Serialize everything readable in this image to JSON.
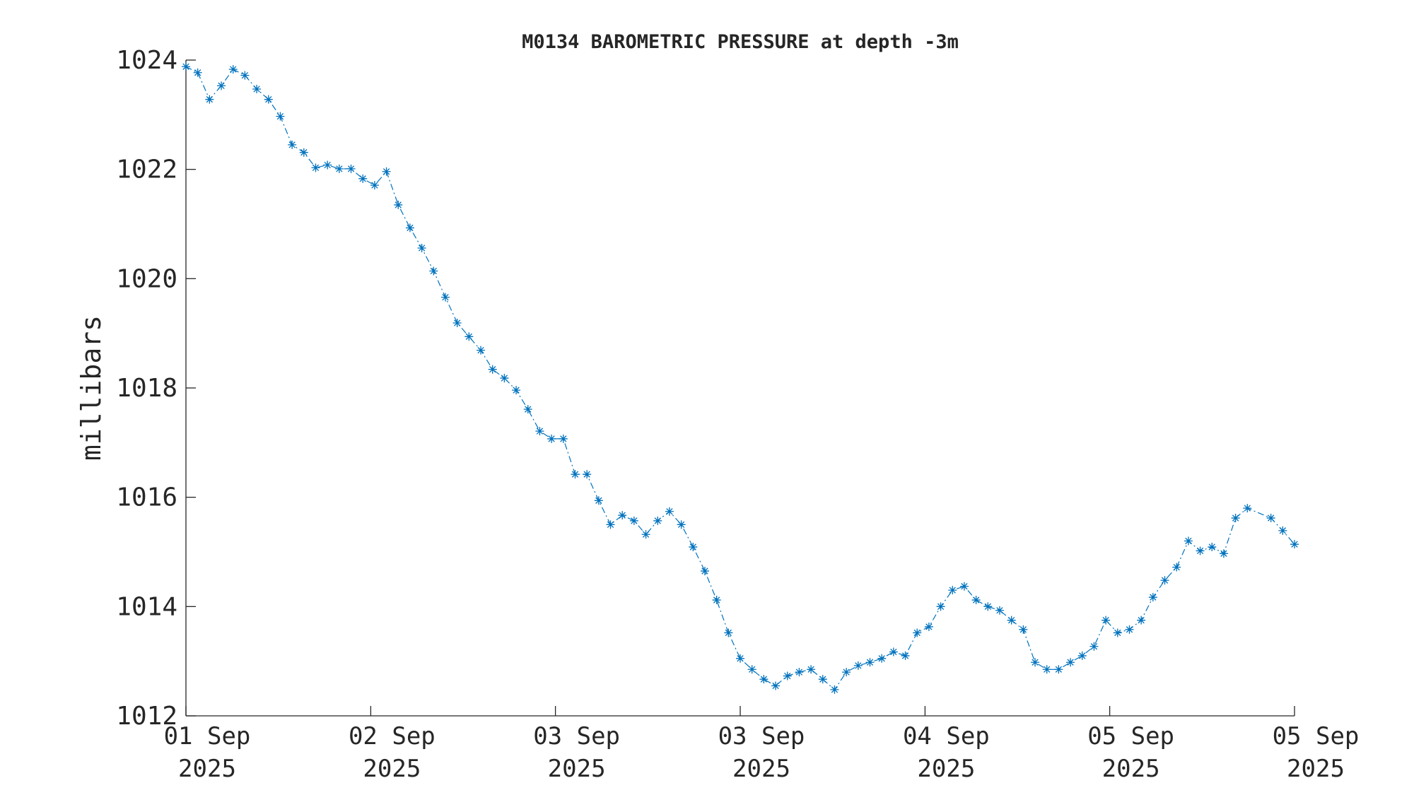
{
  "chart_data": {
    "type": "line",
    "title": "M0134 BAROMETRIC PRESSURE at depth -3m",
    "y_label": "millibars",
    "xlim": [
      0,
      94
    ],
    "xticks": [
      {
        "value": 0,
        "label": "01 Sep\n2025"
      },
      {
        "value": 15.67,
        "label": "02 Sep\n2025"
      },
      {
        "value": 31.33,
        "label": "03 Sep\n2025"
      },
      {
        "value": 47,
        "label": "03 Sep\n2025"
      },
      {
        "value": 62.67,
        "label": "04 Sep\n2025"
      },
      {
        "value": 78.33,
        "label": "05 Sep\n2025"
      },
      {
        "value": 94,
        "label": "05 Sep\n2025"
      }
    ],
    "ylim": [
      1012,
      1024
    ],
    "yticks": [
      1012,
      1014,
      1016,
      1018,
      1020,
      1022,
      1024
    ],
    "grid": false,
    "series": [
      {
        "name": "M0134",
        "color": "#0072BD",
        "x": [
          0,
          1,
          2,
          3,
          4,
          5,
          6,
          7,
          8,
          9,
          10,
          11,
          12,
          13,
          14,
          15,
          16,
          17,
          18,
          19,
          20,
          21,
          22,
          23,
          24,
          25,
          26,
          27,
          28,
          29,
          30,
          31,
          32,
          33,
          34,
          35,
          36,
          37,
          38,
          39,
          40,
          41,
          42,
          43,
          44,
          45,
          46,
          47,
          48,
          49,
          50,
          51,
          52,
          53,
          54,
          55,
          56,
          57,
          58,
          59,
          60,
          61,
          62,
          63,
          64,
          65,
          66,
          67,
          68,
          69,
          70,
          71,
          72,
          73,
          74,
          75,
          76,
          77,
          78,
          79,
          80,
          81,
          82,
          83,
          84,
          85,
          86,
          87,
          88,
          89,
          90,
          92,
          93,
          94
        ],
        "values": [
          1023.88,
          1023.77,
          1023.28,
          1023.53,
          1023.83,
          1023.72,
          1023.47,
          1023.28,
          1022.97,
          1022.45,
          1022.31,
          1022.03,
          1022.08,
          1022.01,
          1022.01,
          1021.83,
          1021.71,
          1021.96,
          1021.35,
          1020.93,
          1020.56,
          1020.14,
          1019.66,
          1019.19,
          1018.94,
          1018.69,
          1018.34,
          1018.18,
          1017.96,
          1017.61,
          1017.21,
          1017.07,
          1017.07,
          1016.42,
          1016.42,
          1015.94,
          1015.5,
          1015.67,
          1015.57,
          1015.32,
          1015.57,
          1015.74,
          1015.5,
          1015.09,
          1014.65,
          1014.12,
          1013.52,
          1013.05,
          1012.85,
          1012.67,
          1012.55,
          1012.73,
          1012.8,
          1012.85,
          1012.67,
          1012.48,
          1012.8,
          1012.92,
          1012.98,
          1013.05,
          1013.17,
          1013.1,
          1013.52,
          1013.63,
          1014.0,
          1014.3,
          1014.37,
          1014.12,
          1014.0,
          1013.93,
          1013.75,
          1013.58,
          1012.98,
          1012.85,
          1012.85,
          1012.98,
          1013.1,
          1013.27,
          1013.75,
          1013.52,
          1013.58,
          1013.75,
          1014.17,
          1014.48,
          1014.72,
          1015.2,
          1015.02,
          1015.09,
          1014.97,
          1015.62,
          1015.8,
          1015.62,
          1015.39,
          1015.14
        ]
      }
    ]
  }
}
